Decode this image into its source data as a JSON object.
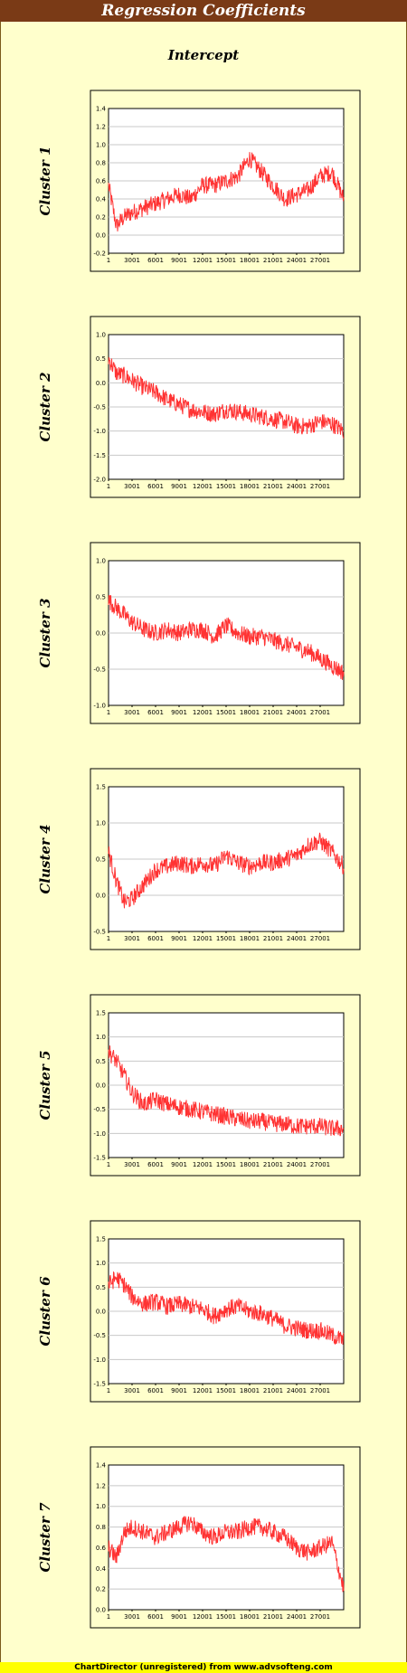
{
  "title": "Regression Coefficients",
  "subtitle": "Intercept",
  "footer": "ChartDirector (unregistered) from www.advsofteng.com",
  "colors": {
    "series": "#ff3333",
    "title_bg": "#7a3a16",
    "page_bg": "#ffffcc",
    "footer_bg": "#ffff00"
  },
  "chart_data": [
    {
      "type": "line",
      "ylabel": "Cluster 1",
      "x_ticks": [
        "1",
        "3001",
        "6001",
        "9001",
        "12001",
        "15001",
        "18001",
        "21001",
        "24001",
        "27001"
      ],
      "x_range": [
        1,
        30000
      ],
      "y_ticks": [
        -0.2,
        0.0,
        0.2,
        0.4,
        0.6,
        0.8,
        1.0,
        1.2,
        1.4
      ],
      "ylim": [
        -0.2,
        1.4
      ],
      "grid": true,
      "series": [
        {
          "x": [
            1,
            1000,
            2000,
            3001,
            4500,
            6001,
            7500,
            9001,
            10500,
            12001,
            13500,
            15001,
            16500,
            18001,
            19500,
            21001,
            22500,
            24001,
            25500,
            27001,
            28500,
            30000
          ],
          "values": [
            0.55,
            0.1,
            0.2,
            0.25,
            0.3,
            0.35,
            0.4,
            0.45,
            0.4,
            0.55,
            0.55,
            0.6,
            0.65,
            0.85,
            0.7,
            0.55,
            0.4,
            0.45,
            0.5,
            0.65,
            0.7,
            0.4
          ]
        }
      ]
    },
    {
      "type": "line",
      "ylabel": "Cluster 2",
      "x_ticks": [
        "1",
        "3001",
        "6001",
        "9001",
        "12001",
        "15001",
        "18001",
        "21001",
        "24001",
        "27001"
      ],
      "x_range": [
        1,
        30000
      ],
      "y_ticks": [
        -2.0,
        -1.5,
        -1.0,
        -0.5,
        0.0,
        0.5,
        1.0
      ],
      "ylim": [
        -2.0,
        1.0
      ],
      "grid": true,
      "series": [
        {
          "x": [
            1,
            1000,
            2000,
            3001,
            4500,
            6001,
            7500,
            9001,
            10500,
            12001,
            13500,
            15001,
            16500,
            18001,
            19500,
            21001,
            22500,
            24001,
            25500,
            27001,
            28500,
            30000
          ],
          "values": [
            0.5,
            0.2,
            0.15,
            0.05,
            -0.1,
            -0.2,
            -0.35,
            -0.45,
            -0.55,
            -0.6,
            -0.65,
            -0.55,
            -0.6,
            -0.65,
            -0.7,
            -0.75,
            -0.8,
            -0.9,
            -0.9,
            -0.8,
            -0.85,
            -1.0
          ]
        }
      ]
    },
    {
      "type": "line",
      "ylabel": "Cluster 3",
      "x_ticks": [
        "1",
        "3001",
        "6001",
        "9001",
        "12001",
        "15001",
        "18001",
        "21001",
        "24001",
        "27001"
      ],
      "x_range": [
        1,
        30000
      ],
      "y_ticks": [
        -1.0,
        -0.5,
        0.0,
        0.5,
        1.0
      ],
      "ylim": [
        -1.0,
        1.0
      ],
      "grid": true,
      "series": [
        {
          "x": [
            1,
            1000,
            2000,
            3001,
            4500,
            6001,
            7500,
            9001,
            10500,
            12001,
            13500,
            15001,
            16500,
            18001,
            19500,
            21001,
            22500,
            24001,
            25500,
            27001,
            28500,
            30000
          ],
          "values": [
            0.45,
            0.35,
            0.25,
            0.15,
            0.05,
            0.0,
            0.05,
            0.0,
            0.05,
            0.05,
            -0.05,
            0.1,
            0.0,
            -0.05,
            -0.05,
            -0.1,
            -0.15,
            -0.2,
            -0.25,
            -0.35,
            -0.45,
            -0.55
          ]
        }
      ]
    },
    {
      "type": "line",
      "ylabel": "Cluster 4",
      "x_ticks": [
        "1",
        "3001",
        "6001",
        "9001",
        "12001",
        "15001",
        "18001",
        "21001",
        "24001",
        "27001"
      ],
      "x_range": [
        1,
        30000
      ],
      "y_ticks": [
        -0.5,
        0.0,
        0.5,
        1.0,
        1.5
      ],
      "ylim": [
        -0.5,
        1.5
      ],
      "grid": true,
      "series": [
        {
          "x": [
            1,
            1000,
            2000,
            3001,
            4500,
            6001,
            7500,
            9001,
            10500,
            12001,
            13500,
            15001,
            16500,
            18001,
            19500,
            21001,
            22500,
            24001,
            25500,
            27001,
            28500,
            30000
          ],
          "values": [
            0.6,
            0.2,
            -0.1,
            -0.05,
            0.15,
            0.35,
            0.4,
            0.45,
            0.4,
            0.45,
            0.4,
            0.55,
            0.45,
            0.4,
            0.45,
            0.45,
            0.5,
            0.55,
            0.7,
            0.75,
            0.6,
            0.4
          ]
        }
      ]
    },
    {
      "type": "line",
      "ylabel": "Cluster 5",
      "x_ticks": [
        "1",
        "3001",
        "6001",
        "9001",
        "12001",
        "15001",
        "18001",
        "21001",
        "24001",
        "27001"
      ],
      "x_range": [
        1,
        30000
      ],
      "y_ticks": [
        -1.5,
        -1.0,
        -0.5,
        0.0,
        0.5,
        1.0,
        1.5
      ],
      "ylim": [
        -1.5,
        1.5
      ],
      "grid": true,
      "series": [
        {
          "x": [
            1,
            1000,
            2000,
            3001,
            4500,
            6001,
            7500,
            9001,
            10500,
            12001,
            13500,
            15001,
            16500,
            18001,
            19500,
            21001,
            22500,
            24001,
            25500,
            27001,
            28500,
            30000
          ],
          "values": [
            0.7,
            0.5,
            0.2,
            -0.15,
            -0.4,
            -0.3,
            -0.4,
            -0.45,
            -0.5,
            -0.55,
            -0.6,
            -0.65,
            -0.7,
            -0.75,
            -0.75,
            -0.8,
            -0.8,
            -0.85,
            -0.85,
            -0.85,
            -0.9,
            -0.9
          ]
        }
      ]
    },
    {
      "type": "line",
      "ylabel": "Cluster 6",
      "x_ticks": [
        "1",
        "3001",
        "6001",
        "9001",
        "12001",
        "15001",
        "18001",
        "21001",
        "24001",
        "27001"
      ],
      "x_range": [
        1,
        30000
      ],
      "y_ticks": [
        -1.5,
        -1.0,
        -0.5,
        0.0,
        0.5,
        1.0,
        1.5
      ],
      "ylim": [
        -1.5,
        1.5
      ],
      "grid": true,
      "series": [
        {
          "x": [
            1,
            1000,
            2000,
            3001,
            4500,
            6001,
            7500,
            9001,
            10500,
            12001,
            13500,
            15001,
            16500,
            18001,
            19500,
            21001,
            22500,
            24001,
            25500,
            27001,
            28500,
            30000
          ],
          "values": [
            0.55,
            0.7,
            0.55,
            0.3,
            0.15,
            0.2,
            0.1,
            0.15,
            0.1,
            0.05,
            -0.1,
            0.05,
            0.1,
            0.0,
            -0.05,
            -0.15,
            -0.3,
            -0.35,
            -0.4,
            -0.4,
            -0.5,
            -0.6
          ]
        }
      ]
    },
    {
      "type": "line",
      "ylabel": "Cluster 7",
      "x_ticks": [
        "1",
        "3001",
        "6001",
        "9001",
        "12001",
        "15001",
        "18001",
        "21001",
        "24001",
        "27001"
      ],
      "x_range": [
        1,
        30000
      ],
      "y_ticks": [
        0.0,
        0.2,
        0.4,
        0.6,
        0.8,
        1.0,
        1.2,
        1.4
      ],
      "ylim": [
        0.0,
        1.4
      ],
      "grid": true,
      "series": [
        {
          "x": [
            1,
            1000,
            2000,
            3001,
            4500,
            6001,
            7500,
            9001,
            10500,
            12001,
            13500,
            15001,
            16500,
            18001,
            19500,
            21001,
            22500,
            24001,
            25500,
            27001,
            28500,
            30000
          ],
          "values": [
            0.6,
            0.5,
            0.75,
            0.8,
            0.75,
            0.7,
            0.75,
            0.8,
            0.85,
            0.75,
            0.7,
            0.75,
            0.75,
            0.8,
            0.8,
            0.75,
            0.7,
            0.6,
            0.55,
            0.6,
            0.65,
            0.2
          ]
        }
      ]
    }
  ]
}
